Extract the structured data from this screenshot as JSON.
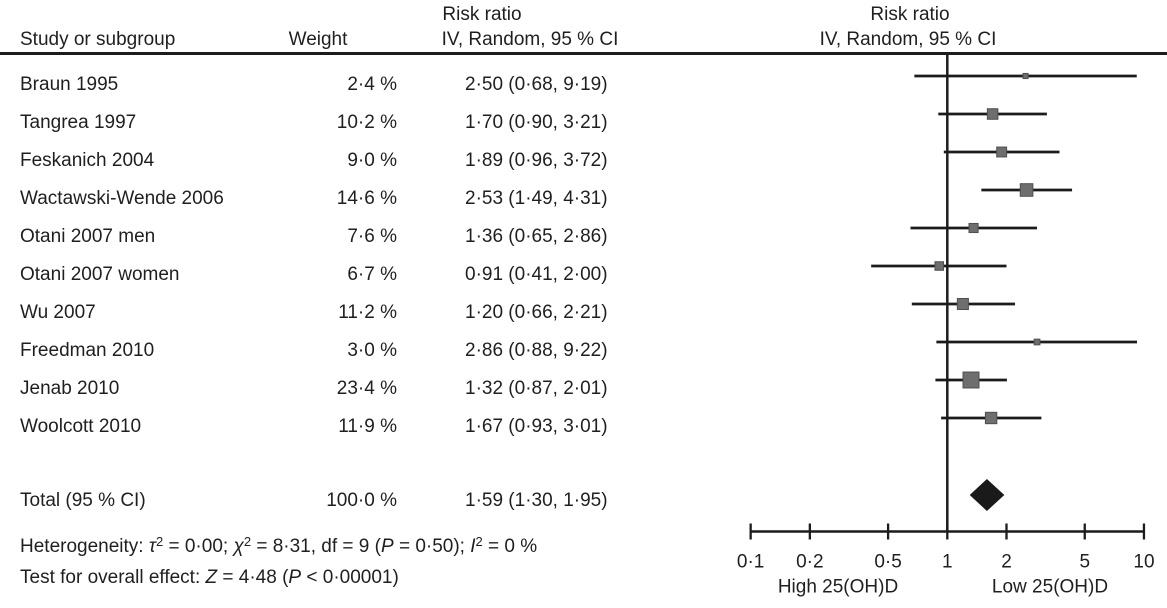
{
  "table": {
    "headers": {
      "study": "Study or subgroup",
      "weight": "Weight",
      "rr_line1": "Risk ratio",
      "rr_line2": "IV, Random, 95 % CI",
      "plot_line1": "Risk ratio",
      "plot_line2": "IV, Random, 95 % CI"
    },
    "rows": [
      {
        "study": "Braun 1995",
        "weight": "2·4 %",
        "rr": "2·50 (0·68, 9·19)"
      },
      {
        "study": "Tangrea 1997",
        "weight": "10·2 %",
        "rr": "1·70 (0·90, 3·21)"
      },
      {
        "study": "Feskanich 2004",
        "weight": "9·0 %",
        "rr": "1·89 (0·96, 3·72)"
      },
      {
        "study": "Wactawski-Wende 2006",
        "weight": "14·6 %",
        "rr": "2·53 (1·49, 4·31)"
      },
      {
        "study": "Otani 2007 men",
        "weight": "7·6 %",
        "rr": "1·36 (0·65, 2·86)"
      },
      {
        "study": "Otani 2007 women",
        "weight": "6·7 %",
        "rr": "0·91 (0·41, 2·00)"
      },
      {
        "study": "Wu 2007",
        "weight": "11·2 %",
        "rr": "1·20 (0·66, 2·21)"
      },
      {
        "study": "Freedman 2010",
        "weight": "3·0 %",
        "rr": "2·86 (0·88, 9·22)"
      },
      {
        "study": "Jenab 2010",
        "weight": "23·4 %",
        "rr": "1·32 (0·87, 2·01)"
      },
      {
        "study": "Woolcott 2010",
        "weight": "11·9 %",
        "rr": "1·67 (0·93, 3·01)"
      }
    ],
    "total": {
      "study": "Total (95 % CI)",
      "weight": "100·0 %",
      "rr": "1·59 (1·30, 1·95)"
    }
  },
  "footer": {
    "heterogeneity_segments": [
      {
        "t": "Heterogeneity: "
      },
      {
        "t": "τ",
        "s": "i"
      },
      {
        "t": "2",
        "s": "sup"
      },
      {
        "t": " = 0·00; "
      },
      {
        "t": "χ",
        "s": "i"
      },
      {
        "t": "2",
        "s": "sup"
      },
      {
        "t": " = 8·31, df = 9 ("
      },
      {
        "t": "P",
        "s": "i"
      },
      {
        "t": " = 0·50); "
      },
      {
        "t": "I",
        "s": "i"
      },
      {
        "t": "2",
        "s": "sup"
      },
      {
        "t": " = 0 %"
      }
    ],
    "overall_effect_segments": [
      {
        "t": "Test for overall effect: "
      },
      {
        "t": "Z",
        "s": "i"
      },
      {
        "t": " = 4·48 ("
      },
      {
        "t": "P",
        "s": "i"
      },
      {
        "t": " < 0·00001)"
      }
    ]
  },
  "chart_data": {
    "type": "forest",
    "x_scale": "log10",
    "x_range": [
      0.1,
      10
    ],
    "x_ticks": [
      0.1,
      0.2,
      0.5,
      1,
      2,
      5,
      10
    ],
    "x_tick_labels": [
      "0·1",
      "0·2",
      "0·5",
      "1",
      "2",
      "5",
      "10"
    ],
    "axis_sublabel_left": "High 25(OH)D",
    "axis_sublabel_right": "Low 25(OH)D",
    "reference_line_value": 1,
    "studies": [
      {
        "name": "Braun 1995",
        "weight_pct": 2.4,
        "rr": 2.5,
        "ci_low": 0.68,
        "ci_high": 9.19
      },
      {
        "name": "Tangrea 1997",
        "weight_pct": 10.2,
        "rr": 1.7,
        "ci_low": 0.9,
        "ci_high": 3.21
      },
      {
        "name": "Feskanich 2004",
        "weight_pct": 9.0,
        "rr": 1.89,
        "ci_low": 0.96,
        "ci_high": 3.72
      },
      {
        "name": "Wactawski-Wende 2006",
        "weight_pct": 14.6,
        "rr": 2.53,
        "ci_low": 1.49,
        "ci_high": 4.31
      },
      {
        "name": "Otani 2007 men",
        "weight_pct": 7.6,
        "rr": 1.36,
        "ci_low": 0.65,
        "ci_high": 2.86
      },
      {
        "name": "Otani 2007 women",
        "weight_pct": 6.7,
        "rr": 0.91,
        "ci_low": 0.41,
        "ci_high": 2.0
      },
      {
        "name": "Wu 2007",
        "weight_pct": 11.2,
        "rr": 1.2,
        "ci_low": 0.66,
        "ci_high": 2.21
      },
      {
        "name": "Freedman 2010",
        "weight_pct": 3.0,
        "rr": 2.86,
        "ci_low": 0.88,
        "ci_high": 9.22
      },
      {
        "name": "Jenab 2010",
        "weight_pct": 23.4,
        "rr": 1.32,
        "ci_low": 0.87,
        "ci_high": 2.01
      },
      {
        "name": "Woolcott 2010",
        "weight_pct": 11.9,
        "rr": 1.67,
        "ci_low": 0.93,
        "ci_high": 3.01
      }
    ],
    "total": {
      "rr": 1.59,
      "ci_low": 1.3,
      "ci_high": 1.95,
      "weight_pct": 100.0
    },
    "colors": {
      "line": "#1c1c1c",
      "square": "#6e6e6e",
      "square_border": "#4f4f4f",
      "diamond": "#1a1a1a",
      "text": "#1f1f1f"
    }
  }
}
